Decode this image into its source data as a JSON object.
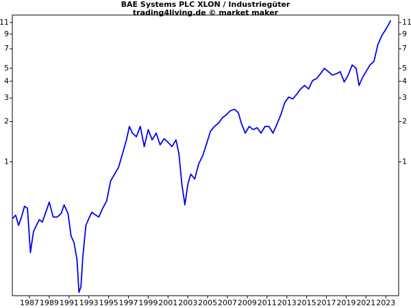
{
  "chart_data": {
    "type": "line",
    "title": "BAE Systems PLC XLON / Industriegüter",
    "subtitle": "trading4living.de © market maker",
    "log_scale": true,
    "color": "#0000ee",
    "xlim": [
      1985.27,
      2024.3
    ],
    "xticks": [
      1987,
      1989,
      1991,
      1993,
      1995,
      1997,
      1999,
      2001,
      2003,
      2005,
      2007,
      2009,
      2011,
      2013,
      2015,
      2017,
      2019,
      2021,
      2023
    ],
    "ylim": [
      0.1,
      12.5
    ],
    "yticks": [
      1,
      2,
      3,
      4,
      5,
      7,
      9,
      11
    ],
    "x": [
      1985.3,
      1985.6,
      1985.9,
      1986.2,
      1986.5,
      1986.8,
      1987.1,
      1987.4,
      1987.7,
      1988.0,
      1988.3,
      1988.7,
      1989.0,
      1989.4,
      1989.8,
      1990.2,
      1990.5,
      1990.9,
      1991.2,
      1991.5,
      1991.8,
      1992.0,
      1992.2,
      1992.4,
      1992.7,
      1993.0,
      1993.3,
      1993.7,
      1994.0,
      1994.4,
      1994.8,
      1995.2,
      1995.6,
      1996.0,
      1996.4,
      1996.8,
      1997.1,
      1997.4,
      1997.8,
      1998.2,
      1998.6,
      1999.0,
      1999.4,
      1999.8,
      2000.2,
      2000.6,
      2001.0,
      2001.4,
      2001.8,
      2002.1,
      2002.4,
      2002.7,
      2003.0,
      2003.3,
      2003.7,
      2004.1,
      2004.5,
      2004.9,
      2005.3,
      2005.7,
      2006.1,
      2006.5,
      2006.9,
      2007.3,
      2007.7,
      2008.1,
      2008.4,
      2008.8,
      2009.2,
      2009.6,
      2010.0,
      2010.4,
      2010.8,
      2011.2,
      2011.6,
      2012.0,
      2012.4,
      2012.8,
      2013.2,
      2013.6,
      2014.0,
      2014.4,
      2014.8,
      2015.2,
      2015.6,
      2016.0,
      2016.4,
      2016.8,
      2017.2,
      2017.6,
      2018.0,
      2018.4,
      2018.8,
      2019.2,
      2019.6,
      2020.0,
      2020.3,
      2020.6,
      2021.0,
      2021.4,
      2021.8,
      2022.2,
      2022.6,
      2022.9,
      2023.2,
      2023.5
    ],
    "values": [
      0.377,
      0.4,
      0.335,
      0.387,
      0.466,
      0.45,
      0.21,
      0.3,
      0.335,
      0.37,
      0.355,
      0.43,
      0.5,
      0.387,
      0.387,
      0.41,
      0.477,
      0.41,
      0.28,
      0.25,
      0.186,
      0.106,
      0.116,
      0.198,
      0.335,
      0.377,
      0.42,
      0.4,
      0.387,
      0.45,
      0.51,
      0.72,
      0.81,
      0.91,
      1.15,
      1.46,
      1.84,
      1.64,
      1.54,
      1.84,
      1.3,
      1.74,
      1.46,
      1.64,
      1.34,
      1.49,
      1.4,
      1.3,
      1.46,
      1.15,
      0.68,
      0.477,
      0.68,
      0.81,
      0.745,
      0.966,
      1.11,
      1.37,
      1.7,
      1.84,
      1.95,
      2.14,
      2.25,
      2.41,
      2.47,
      2.33,
      1.95,
      1.64,
      1.84,
      1.74,
      1.8,
      1.64,
      1.84,
      1.84,
      1.64,
      1.91,
      2.25,
      2.78,
      3.05,
      2.95,
      3.2,
      3.51,
      3.72,
      3.51,
      4.05,
      4.19,
      4.55,
      5.0,
      4.72,
      4.45,
      4.55,
      4.72,
      3.95,
      4.45,
      5.3,
      5.0,
      3.72,
      4.19,
      4.72,
      5.3,
      5.63,
      7.53,
      8.78,
      9.52,
      10.35,
      11.4
    ]
  }
}
